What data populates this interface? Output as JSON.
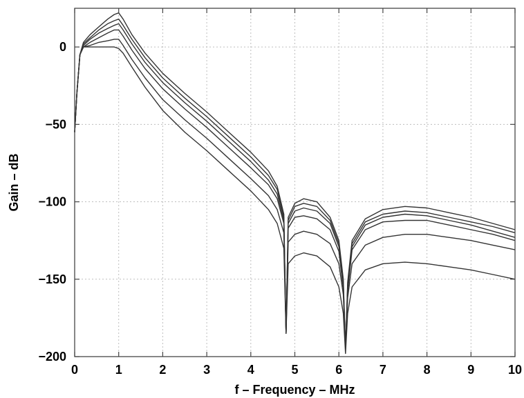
{
  "chart_data": {
    "type": "line",
    "title": "",
    "xlabel": "f – Frequency – MHz",
    "ylabel": "Gain – dB",
    "xlim": [
      0,
      10
    ],
    "ylim": [
      -200,
      25
    ],
    "x_ticks": [
      0,
      1,
      2,
      3,
      4,
      5,
      6,
      7,
      8,
      9,
      10
    ],
    "x_tick_labels": [
      "0",
      "1",
      "2",
      "3",
      "4",
      "5",
      "6",
      "7",
      "8",
      "9",
      "10"
    ],
    "y_ticks": [
      0,
      -50,
      -100,
      -150,
      -200
    ],
    "y_tick_labels": [
      "0",
      "−50",
      "−100",
      "−150",
      "−200"
    ],
    "grid": true,
    "legend": "none",
    "series": [
      {
        "points": [
          [
            0,
            -55
          ],
          [
            0.05,
            -30
          ],
          [
            0.12,
            -5
          ],
          [
            0.2,
            3
          ],
          [
            0.35,
            8
          ],
          [
            0.55,
            13
          ],
          [
            0.75,
            18
          ],
          [
            0.9,
            21
          ],
          [
            1.0,
            22
          ],
          [
            1.1,
            18
          ],
          [
            1.3,
            8
          ],
          [
            1.6,
            -4
          ],
          [
            2.0,
            -17
          ],
          [
            2.5,
            -30
          ],
          [
            3.0,
            -42
          ],
          [
            3.5,
            -55
          ],
          [
            4.0,
            -68
          ],
          [
            4.4,
            -80
          ],
          [
            4.6,
            -90
          ],
          [
            4.75,
            -108
          ],
          [
            4.8,
            -185
          ],
          [
            4.85,
            -110
          ],
          [
            5.0,
            -101
          ],
          [
            5.2,
            -98
          ],
          [
            5.5,
            -100
          ],
          [
            5.8,
            -110
          ],
          [
            6.0,
            -125
          ],
          [
            6.1,
            -150
          ],
          [
            6.15,
            -195
          ],
          [
            6.2,
            -152
          ],
          [
            6.3,
            -125
          ],
          [
            6.6,
            -111
          ],
          [
            7.0,
            -105
          ],
          [
            7.5,
            -103
          ],
          [
            8.0,
            -104
          ],
          [
            8.5,
            -107
          ],
          [
            9.0,
            -110
          ],
          [
            9.5,
            -114
          ],
          [
            10,
            -118
          ]
        ]
      },
      {
        "points": [
          [
            0,
            -55
          ],
          [
            0.05,
            -30
          ],
          [
            0.12,
            -5
          ],
          [
            0.2,
            2
          ],
          [
            0.35,
            6
          ],
          [
            0.55,
            11
          ],
          [
            0.75,
            15
          ],
          [
            0.9,
            17
          ],
          [
            1.0,
            18
          ],
          [
            1.1,
            14
          ],
          [
            1.3,
            5
          ],
          [
            1.6,
            -7
          ],
          [
            2.0,
            -20
          ],
          [
            2.5,
            -33
          ],
          [
            3.0,
            -45
          ],
          [
            3.5,
            -58
          ],
          [
            4.0,
            -71
          ],
          [
            4.4,
            -83
          ],
          [
            4.6,
            -92
          ],
          [
            4.75,
            -110
          ],
          [
            4.8,
            -185
          ],
          [
            4.85,
            -112
          ],
          [
            5.0,
            -103
          ],
          [
            5.2,
            -101
          ],
          [
            5.5,
            -103
          ],
          [
            5.8,
            -112
          ],
          [
            6.0,
            -127
          ],
          [
            6.1,
            -152
          ],
          [
            6.15,
            -195
          ],
          [
            6.2,
            -154
          ],
          [
            6.3,
            -127
          ],
          [
            6.6,
            -113
          ],
          [
            7.0,
            -108
          ],
          [
            7.5,
            -106
          ],
          [
            8.0,
            -107
          ],
          [
            8.5,
            -110
          ],
          [
            9.0,
            -113
          ],
          [
            9.5,
            -116
          ],
          [
            10,
            -120
          ]
        ]
      },
      {
        "points": [
          [
            0,
            -55
          ],
          [
            0.05,
            -30
          ],
          [
            0.12,
            -5
          ],
          [
            0.2,
            1
          ],
          [
            0.35,
            5
          ],
          [
            0.55,
            9
          ],
          [
            0.75,
            12
          ],
          [
            0.9,
            14
          ],
          [
            1.0,
            15
          ],
          [
            1.1,
            11
          ],
          [
            1.3,
            2
          ],
          [
            1.6,
            -10
          ],
          [
            2.0,
            -23
          ],
          [
            2.5,
            -36
          ],
          [
            3.0,
            -48
          ],
          [
            3.5,
            -61
          ],
          [
            4.0,
            -74
          ],
          [
            4.4,
            -86
          ],
          [
            4.6,
            -95
          ],
          [
            4.75,
            -112
          ],
          [
            4.8,
            -185
          ],
          [
            4.85,
            -114
          ],
          [
            5.0,
            -106
          ],
          [
            5.2,
            -104
          ],
          [
            5.5,
            -106
          ],
          [
            5.8,
            -114
          ],
          [
            6.0,
            -129
          ],
          [
            6.1,
            -154
          ],
          [
            6.15,
            -195
          ],
          [
            6.2,
            -156
          ],
          [
            6.3,
            -129
          ],
          [
            6.6,
            -115
          ],
          [
            7.0,
            -110
          ],
          [
            7.5,
            -108
          ],
          [
            8.0,
            -109
          ],
          [
            8.5,
            -112
          ],
          [
            9.0,
            -115
          ],
          [
            9.5,
            -119
          ],
          [
            10,
            -123
          ]
        ]
      },
      {
        "points": [
          [
            0,
            -55
          ],
          [
            0.05,
            -30
          ],
          [
            0.12,
            -5
          ],
          [
            0.2,
            0
          ],
          [
            0.35,
            3
          ],
          [
            0.55,
            6
          ],
          [
            0.75,
            9
          ],
          [
            0.9,
            11
          ],
          [
            1.0,
            11
          ],
          [
            1.1,
            7
          ],
          [
            1.3,
            -2
          ],
          [
            1.6,
            -14
          ],
          [
            2.0,
            -27
          ],
          [
            2.5,
            -40
          ],
          [
            3.0,
            -52
          ],
          [
            3.5,
            -65
          ],
          [
            4.0,
            -78
          ],
          [
            4.4,
            -89
          ],
          [
            4.6,
            -98
          ],
          [
            4.75,
            -114
          ],
          [
            4.8,
            -185
          ],
          [
            4.85,
            -117
          ],
          [
            5.0,
            -110
          ],
          [
            5.2,
            -109
          ],
          [
            5.5,
            -111
          ],
          [
            5.8,
            -118
          ],
          [
            6.0,
            -132
          ],
          [
            6.1,
            -156
          ],
          [
            6.15,
            -195
          ],
          [
            6.2,
            -158
          ],
          [
            6.3,
            -131
          ],
          [
            6.6,
            -118
          ],
          [
            7.0,
            -113
          ],
          [
            7.5,
            -112
          ],
          [
            8.0,
            -112
          ],
          [
            8.5,
            -115
          ],
          [
            9.0,
            -118
          ],
          [
            9.5,
            -121
          ],
          [
            10,
            -125
          ]
        ]
      },
      {
        "points": [
          [
            0,
            -55
          ],
          [
            0.05,
            -30
          ],
          [
            0.12,
            -5
          ],
          [
            0.2,
            0
          ],
          [
            0.35,
            1
          ],
          [
            0.55,
            3
          ],
          [
            0.75,
            4
          ],
          [
            0.9,
            5
          ],
          [
            1.0,
            5
          ],
          [
            1.1,
            1
          ],
          [
            1.3,
            -8
          ],
          [
            1.6,
            -20
          ],
          [
            2.0,
            -34
          ],
          [
            2.5,
            -47
          ],
          [
            3.0,
            -59
          ],
          [
            3.5,
            -72
          ],
          [
            4.0,
            -85
          ],
          [
            4.4,
            -96
          ],
          [
            4.6,
            -105
          ],
          [
            4.75,
            -120
          ],
          [
            4.8,
            -185
          ],
          [
            4.85,
            -126
          ],
          [
            5.0,
            -121
          ],
          [
            5.2,
            -119
          ],
          [
            5.5,
            -121
          ],
          [
            5.8,
            -127
          ],
          [
            6.0,
            -140
          ],
          [
            6.1,
            -160
          ],
          [
            6.15,
            -195
          ],
          [
            6.2,
            -162
          ],
          [
            6.3,
            -140
          ],
          [
            6.6,
            -128
          ],
          [
            7.0,
            -123
          ],
          [
            7.5,
            -121
          ],
          [
            8.0,
            -121
          ],
          [
            8.5,
            -123
          ],
          [
            9.0,
            -125
          ],
          [
            9.5,
            -128
          ],
          [
            10,
            -131
          ]
        ]
      },
      {
        "points": [
          [
            0,
            -55
          ],
          [
            0.05,
            -30
          ],
          [
            0.12,
            -5
          ],
          [
            0.2,
            0
          ],
          [
            0.35,
            0
          ],
          [
            0.55,
            0
          ],
          [
            0.75,
            0
          ],
          [
            0.9,
            0
          ],
          [
            1.0,
            -1
          ],
          [
            1.1,
            -4
          ],
          [
            1.3,
            -13
          ],
          [
            1.6,
            -26
          ],
          [
            2.0,
            -41
          ],
          [
            2.5,
            -55
          ],
          [
            3.0,
            -67
          ],
          [
            3.5,
            -80
          ],
          [
            4.0,
            -93
          ],
          [
            4.4,
            -105
          ],
          [
            4.6,
            -114
          ],
          [
            4.75,
            -130
          ],
          [
            4.8,
            -185
          ],
          [
            4.85,
            -140
          ],
          [
            5.0,
            -135
          ],
          [
            5.2,
            -133
          ],
          [
            5.5,
            -135
          ],
          [
            5.8,
            -142
          ],
          [
            6.0,
            -155
          ],
          [
            6.1,
            -172
          ],
          [
            6.15,
            -198
          ],
          [
            6.2,
            -172
          ],
          [
            6.3,
            -155
          ],
          [
            6.6,
            -144
          ],
          [
            7.0,
            -140
          ],
          [
            7.5,
            -139
          ],
          [
            8.0,
            -140
          ],
          [
            8.5,
            -142
          ],
          [
            9.0,
            -144
          ],
          [
            9.5,
            -147
          ],
          [
            10,
            -150
          ]
        ]
      }
    ]
  }
}
